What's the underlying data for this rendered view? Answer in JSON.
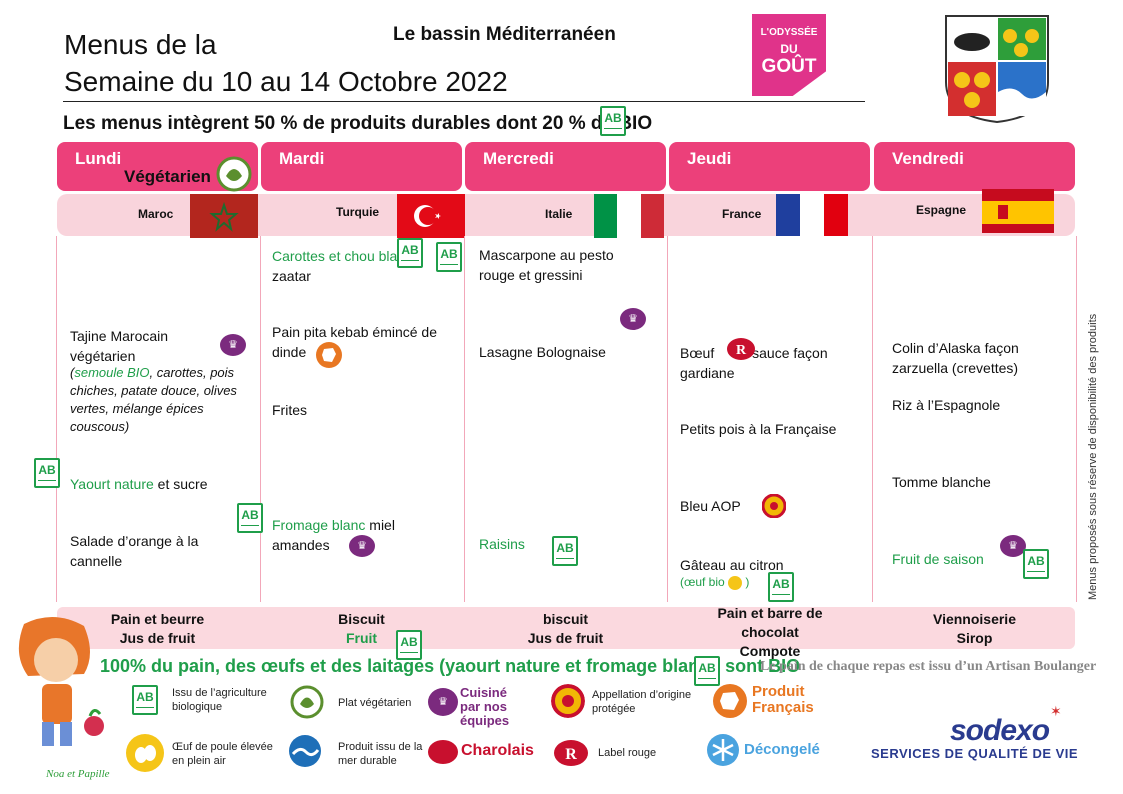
{
  "header": {
    "title_line1": "Menus de la",
    "title_line2": "Semaine du 10 au 14 Octobre 2022",
    "theme": "Le bassin Méditerranéen",
    "intro": "Les menus intègrent 50 % de produits durables dont 20 % de BIO",
    "logo_odyssee_line1": "L'ODYSSÉE",
    "logo_odyssee_line2": "DU",
    "logo_odyssee_line3": "GOÛT"
  },
  "days": [
    {
      "label": "Lundi",
      "country": "Maroc",
      "tag": "Végétarien"
    },
    {
      "label": "Mardi",
      "country": "Turquie"
    },
    {
      "label": "Mercredi",
      "country": "Italie"
    },
    {
      "label": "Jeudi",
      "country": "France"
    },
    {
      "label": "Vendredi",
      "country": "Espagne"
    }
  ],
  "menu": {
    "lundi": {
      "main": "Tajine Marocain végétarien",
      "main_detail_bio": "semoule BIO",
      "main_detail_rest": ", carottes, pois chiches, patate douce, olives vertes, mélange épices couscous)",
      "dairy_green": "Yaourt nature",
      "dairy_rest": " et sucre",
      "dessert": "Salade d’orange à la cannelle"
    },
    "mardi": {
      "starter_green": "Carottes et chou blanc",
      "starter_rest": "zaatar",
      "main": "Pain pita kebab émincé de dinde",
      "side": "Frites",
      "dairy_green": "Fromage blanc",
      "dairy_rest": " miel amandes"
    },
    "mercredi": {
      "starter": "Mascarpone au pesto rouge et gressini",
      "main": "Lasagne Bolognaise",
      "fruit": "Raisins"
    },
    "jeudi": {
      "main_a": "Bœuf",
      "main_b": " sauce façon gardiane",
      "side": "Petits pois à la Française",
      "cheese": "Bleu AOP",
      "dessert": "Gâteau au citron",
      "egg_note_a": "(œuf bio",
      "egg_note_b": " )"
    },
    "vendredi": {
      "main": "Colin d’Alaska façon zarzuella  (crevettes)",
      "side": "Riz à l’Espagnole",
      "cheese": "Tomme blanche",
      "fruit": "Fruit de saison"
    }
  },
  "gouter": {
    "lundi": [
      "Pain et beurre",
      "Jus de fruit"
    ],
    "mardi": [
      "Biscuit",
      "Fruit"
    ],
    "mercredi": [
      "biscuit",
      "Jus de fruit"
    ],
    "jeudi": [
      "Pain et barre de chocolat",
      "Compote"
    ],
    "vendredi": [
      "Viennoiserie",
      "Sirop"
    ]
  },
  "footer": {
    "bio_note": "100% du pain, des œufs et des laitages (yaourt nature et fromage blanc ) sont BIO",
    "artisan": "Le pain de chaque repas est  issu d’un Artisan Boulanger",
    "side_note": "Menus proposés sous réserve de disponibilité des produits",
    "mascot": "Noa et Papille"
  },
  "legend": {
    "bio": "Issu de l’agriculture biologique",
    "veg": "Plat végétarien",
    "cuisine": "Cuisiné par nos équipes",
    "aop": "Appellation d’origine protégée",
    "produit_francais": "Produit Français",
    "oeuf": "Œuf de poule élevée en plein air",
    "mer": "Produit issu de la mer durable",
    "charolais": "Charolais",
    "label_rouge": "Label rouge",
    "decongele": "Décongelé",
    "ab_text": "AB",
    "sodexo": "sodexo",
    "sodexo_sub": "SERVICES DE QUALITÉ DE VIE"
  },
  "colors": {
    "pink": "#ec407a",
    "band": "#f9d4dc",
    "green": "#1f9e4a",
    "sodexo": "#2a3b8f"
  }
}
